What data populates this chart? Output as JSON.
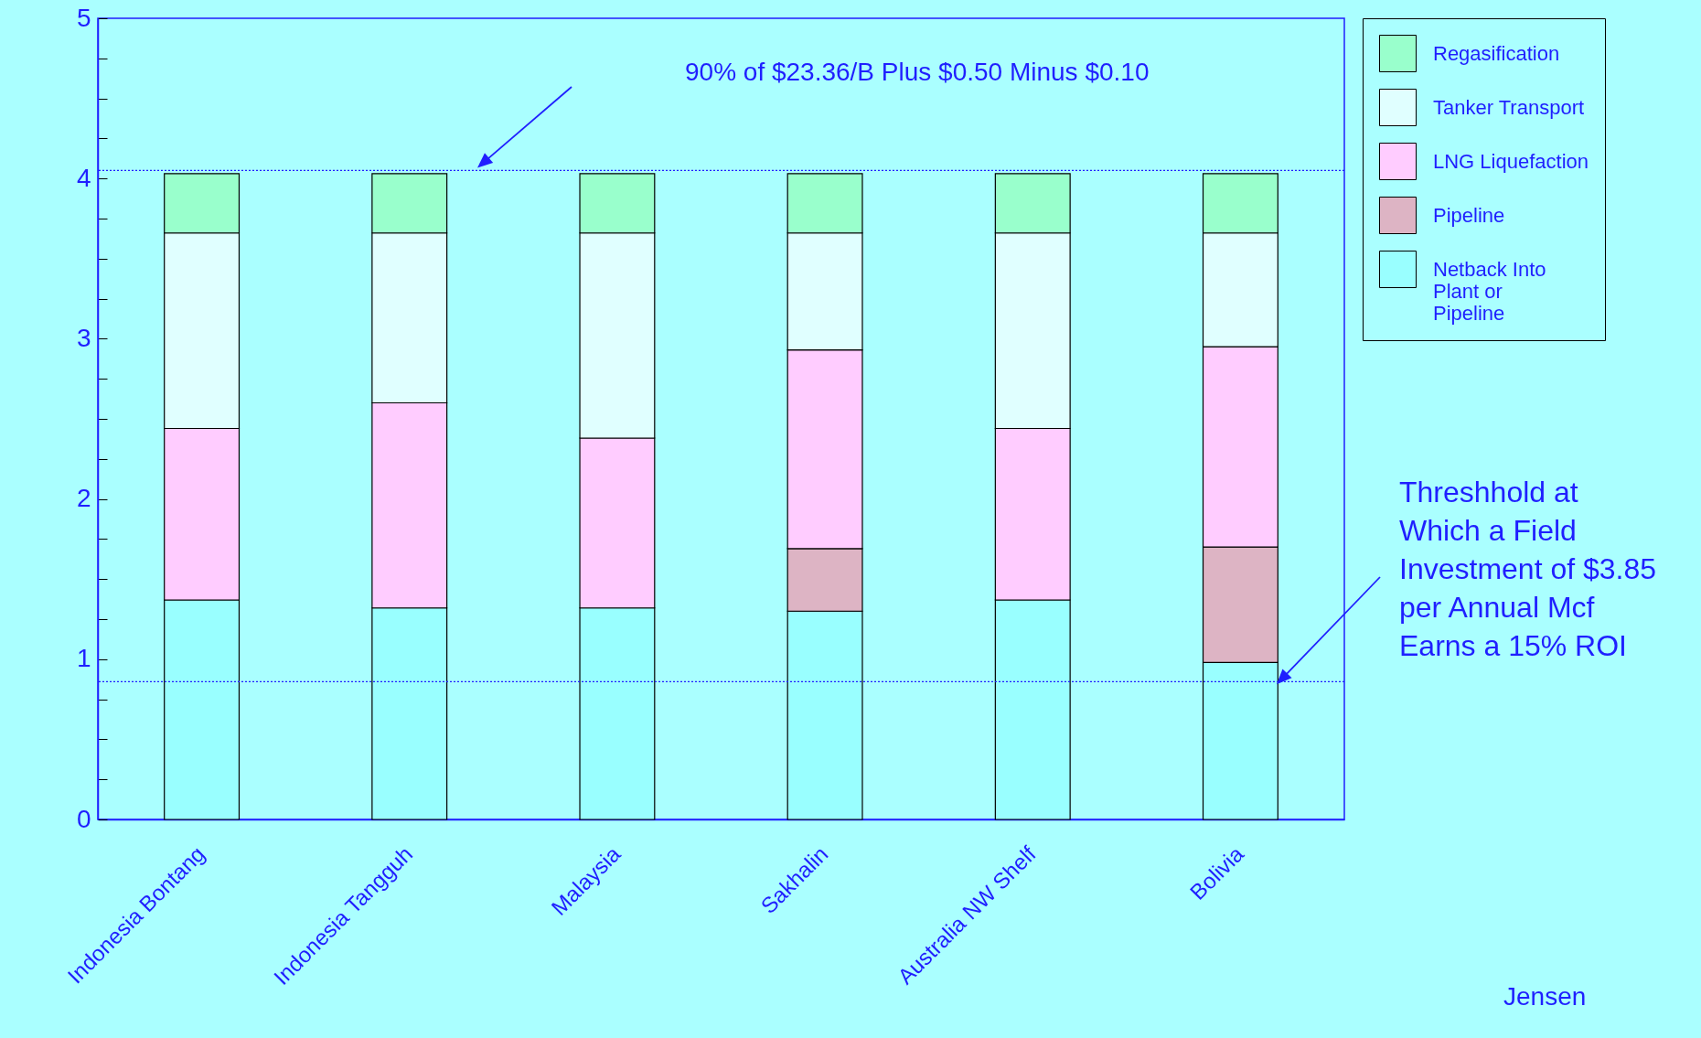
{
  "chart_data": {
    "type": "bar",
    "stacked": true,
    "categories": [
      "Indonesia Bontang",
      "Indonesia Tangguh",
      "Malaysia",
      "Sakhalin",
      "Australia NW Shelf",
      "Bolivia"
    ],
    "series": [
      {
        "name": "Netback Into Plant or Pipeline",
        "color": "#99ffff",
        "values": [
          1.37,
          1.32,
          1.32,
          1.3,
          1.37,
          0.98
        ]
      },
      {
        "name": "Pipeline",
        "color": "#ddb4c4",
        "values": [
          null,
          null,
          null,
          0.39,
          null,
          0.72
        ]
      },
      {
        "name": "LNG Liquefaction",
        "color": "#ffccff",
        "values": [
          1.07,
          1.28,
          1.06,
          1.24,
          1.07,
          1.25
        ]
      },
      {
        "name": "Tanker Transport",
        "color": "#e0ffff",
        "values": [
          1.22,
          1.06,
          1.28,
          0.73,
          1.22,
          0.71
        ]
      },
      {
        "name": "Regasification",
        "color": "#99ffcc",
        "values": [
          0.37,
          0.37,
          0.37,
          0.37,
          0.37,
          0.37
        ]
      }
    ],
    "ylim": [
      0,
      5
    ],
    "yticks": [
      0,
      {
        "value": 0.25,
        "label": null
      },
      {
        "value": 0.5,
        "label": null
      },
      {
        "value": 0.75,
        "label": null
      },
      1,
      {
        "value": 1.25,
        "label": null
      },
      {
        "value": 1.5,
        "label": null
      },
      {
        "value": 1.75,
        "label": null
      },
      2,
      {
        "value": 2.25,
        "label": null
      },
      {
        "value": 2.5,
        "label": null
      },
      {
        "value": 2.75,
        "label": null
      },
      3,
      {
        "value": 3.25,
        "label": null
      },
      {
        "value": 3.5,
        "label": null
      },
      {
        "value": 3.75,
        "label": null
      },
      4,
      {
        "value": 4.25,
        "label": null
      },
      {
        "value": 4.5,
        "label": null
      },
      {
        "value": 4.75,
        "label": null
      },
      5
    ],
    "ref_lines": [
      {
        "axis": "y",
        "value": 4.05,
        "label": "90% of $23.36/B Plus $0.50 Minus $0.10",
        "color": "#1f1fff",
        "line_style": "dotted"
      },
      {
        "axis": "y",
        "value": 0.86,
        "label": "Threshhold at\nWhich a Field\nInvestment of $3.85\nper Annual Mcf\nEarns a 15% ROI",
        "color": "#1f1fff",
        "line_style": "dotted"
      }
    ],
    "annotations": [
      "Jensen"
    ],
    "legend": "top right",
    "grid": false
  }
}
